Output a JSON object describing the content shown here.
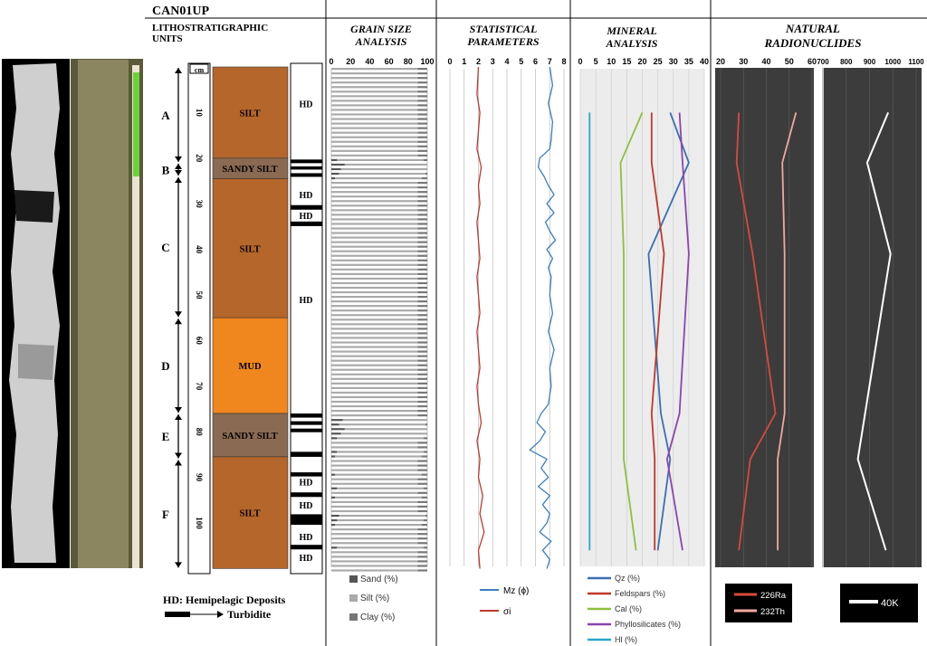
{
  "core_id": "CAN01UP",
  "litho_header": "LITHOSTRATIGRAPHIC UNITS",
  "depth_unit": "cm",
  "depth_ticks": [
    "10",
    "20",
    "30",
    "40",
    "50",
    "60",
    "70",
    "80",
    "90",
    "100"
  ],
  "units": [
    {
      "label": "A",
      "top": 0,
      "bottom": 21
    },
    {
      "label": "B",
      "top": 21,
      "bottom": 24
    },
    {
      "label": "C",
      "top": 24,
      "bottom": 55
    },
    {
      "label": "D",
      "top": 55,
      "bottom": 76
    },
    {
      "label": "E",
      "top": 76,
      "bottom": 86
    },
    {
      "label": "F",
      "top": 86,
      "bottom": 110
    }
  ],
  "lithology": [
    {
      "label": "SILT",
      "top": 0,
      "bottom": 20,
      "color": "#b5662b"
    },
    {
      "label": "SANDY SILT",
      "top": 20,
      "bottom": 24.5,
      "color": "#8a6a52"
    },
    {
      "label": "SILT",
      "top": 24.5,
      "bottom": 55,
      "color": "#b5662b"
    },
    {
      "label": "MUD",
      "top": 55,
      "bottom": 76,
      "color": "#f0861e"
    },
    {
      "label": "SANDY SILT",
      "top": 76,
      "bottom": 85.5,
      "color": "#8a6a52"
    },
    {
      "label": "SILT",
      "top": 85.5,
      "bottom": 110,
      "color": "#b5662b"
    }
  ],
  "hd_labels": [
    {
      "text": "HD",
      "depth": 8
    },
    {
      "text": "HD",
      "depth": 28
    },
    {
      "text": "HD",
      "depth": 32.5
    },
    {
      "text": "HD",
      "depth": 51
    },
    {
      "text": "HD",
      "depth": 91
    },
    {
      "text": "HD",
      "depth": 96
    },
    {
      "text": "HD",
      "depth": 103
    },
    {
      "text": "HD",
      "depth": 107.5
    }
  ],
  "turbidites": [
    {
      "top": 20.3,
      "bottom": 21.1
    },
    {
      "top": 21.8,
      "bottom": 22.5
    },
    {
      "top": 23.3,
      "bottom": 24.1
    },
    {
      "top": 30.3,
      "bottom": 31.3
    },
    {
      "top": 33.9,
      "bottom": 34.9
    },
    {
      "top": 76,
      "bottom": 76.9
    },
    {
      "top": 77.7,
      "bottom": 78.5
    },
    {
      "top": 79.3,
      "bottom": 80.1
    },
    {
      "top": 84.4,
      "bottom": 85.5
    },
    {
      "top": 88.9,
      "bottom": 89.8
    },
    {
      "top": 93.3,
      "bottom": 94.3
    },
    {
      "top": 98.1,
      "bottom": 100.4
    },
    {
      "top": 104.8,
      "bottom": 105.8
    }
  ],
  "legend_hd": "HD: Hemipelagic Deposits",
  "legend_turbidite": "Turbidite",
  "panel_titles": {
    "grain": "GRAIN SIZE ANALYSIS",
    "stat": "STATISTICAL PARAMETERS",
    "mineral": "MINERAL ANALYSIS",
    "radio": "NATURAL RADIONUCLIDES"
  },
  "chart_data": [
    {
      "type": "bar",
      "title": "GRAIN SIZE ANALYSIS",
      "orientation": "horizontal-stacked",
      "xlim": [
        0,
        100
      ],
      "xticks": [
        "0",
        "20",
        "40",
        "60",
        "80",
        "100"
      ],
      "series_names": [
        "Sand (%)",
        "Silt (%)",
        "Clay (%)"
      ],
      "colors": [
        "#555555",
        "#aaaaaa",
        "#777777"
      ],
      "depth_step": 1,
      "sand_nonzero": {
        "20": 6,
        "21": 14,
        "22": 10,
        "23": 8,
        "24": 4,
        "77": 12,
        "78": 8,
        "79": 14,
        "80": 10,
        "81": 6,
        "84": 6,
        "85": 4,
        "89": 4,
        "92": 6,
        "94": 4,
        "98": 8,
        "99": 6,
        "100": 4,
        "105": 6
      },
      "silt_typical": 18,
      "clay_typical": 3
    },
    {
      "type": "line",
      "title": "STATISTICAL PARAMETERS",
      "xlim": [
        0,
        8
      ],
      "xticks": [
        "0",
        "1",
        "2",
        "3",
        "4",
        "5",
        "6",
        "7",
        "8"
      ],
      "series": [
        {
          "name": "Mz (ϕ)",
          "color": "#3a7fc0",
          "depth": [
            0,
            4,
            8,
            12,
            16,
            18,
            20,
            22,
            24,
            26,
            28,
            30,
            32,
            34,
            36,
            38,
            40,
            42,
            44,
            46,
            50,
            54,
            58,
            62,
            66,
            70,
            74,
            76,
            78,
            80,
            82,
            84,
            86,
            88,
            90,
            92,
            94,
            96,
            98,
            100,
            102,
            104,
            106,
            108,
            110
          ],
          "x": [
            7.0,
            7.2,
            6.9,
            7.2,
            7.1,
            7.0,
            6.3,
            6.2,
            6.6,
            6.9,
            7.3,
            6.8,
            7.3,
            6.7,
            7.0,
            7.4,
            6.8,
            7.2,
            6.9,
            7.1,
            7.0,
            7.2,
            6.9,
            7.3,
            7.0,
            7.1,
            6.9,
            6.4,
            6.1,
            6.7,
            6.3,
            5.6,
            6.8,
            6.4,
            6.9,
            6.2,
            7.0,
            6.5,
            7.0,
            6.8,
            6.3,
            7.1,
            6.5,
            7.0,
            6.8
          ]
        },
        {
          "name": "σi",
          "color": "#c0392b",
          "depth": [
            0,
            6,
            10,
            14,
            18,
            22,
            26,
            30,
            34,
            38,
            42,
            46,
            50,
            54,
            58,
            62,
            66,
            70,
            74,
            78,
            82,
            86,
            90,
            94,
            98,
            102,
            106,
            110
          ],
          "x": [
            2.0,
            1.9,
            2.1,
            2.0,
            1.9,
            2.2,
            2.0,
            2.1,
            1.9,
            2.0,
            2.1,
            1.9,
            2.0,
            2.1,
            1.9,
            2.0,
            2.1,
            1.9,
            2.0,
            2.2,
            1.9,
            2.1,
            2.0,
            2.3,
            2.1,
            2.4,
            2.0,
            2.1
          ]
        }
      ]
    },
    {
      "type": "line",
      "title": "MINERAL ANALYSIS",
      "xlim": [
        0,
        40
      ],
      "xticks": [
        "0",
        "5",
        "10",
        "15",
        "20",
        "25",
        "30",
        "35",
        "40"
      ],
      "depth": [
        10,
        21,
        41,
        76,
        86,
        106
      ],
      "series": [
        {
          "name": "Qz (%)",
          "color": "#3a6fb0",
          "x": [
            29,
            35,
            22,
            26,
            29,
            25
          ]
        },
        {
          "name": "Feldspars (%)",
          "color": "#c0392b",
          "x": [
            23,
            23,
            27,
            23,
            24,
            24
          ]
        },
        {
          "name": "Cal (%)",
          "color": "#8fbf3f",
          "x": [
            20,
            13,
            14,
            14,
            14,
            18
          ]
        },
        {
          "name": "Phyllosilicates (%)",
          "color": "#8e44ad",
          "x": [
            32,
            33,
            35,
            32,
            28,
            33
          ]
        },
        {
          "name": "Hl (%)",
          "color": "#2aa7c9",
          "x": [
            3,
            3,
            3,
            3,
            3,
            3
          ]
        }
      ]
    },
    {
      "type": "line",
      "title": "NATURAL RADIONUCLIDES",
      "xlim": [
        20,
        60
      ],
      "xticks": [
        "20",
        "30",
        "40",
        "50",
        "60"
      ],
      "depth": [
        10,
        21,
        41,
        76,
        86,
        106
      ],
      "series": [
        {
          "name": "226Ra",
          "color": "#d94a3a",
          "x": [
            28,
            27,
            34,
            44,
            33,
            28
          ]
        },
        {
          "name": "232Th",
          "color": "#f2a7a1",
          "x": [
            53,
            47,
            48,
            48,
            45,
            45
          ]
        }
      ]
    },
    {
      "type": "line",
      "title": "NATURAL RADIONUCLIDES",
      "xlim": [
        700,
        1100
      ],
      "xticks": [
        "700",
        "800",
        "900",
        "1000",
        "1100"
      ],
      "depth": [
        10,
        21,
        41,
        86,
        106
      ],
      "series": [
        {
          "name": "40K",
          "color": "#ffffff",
          "x": [
            980,
            890,
            990,
            850,
            970
          ]
        }
      ]
    }
  ]
}
